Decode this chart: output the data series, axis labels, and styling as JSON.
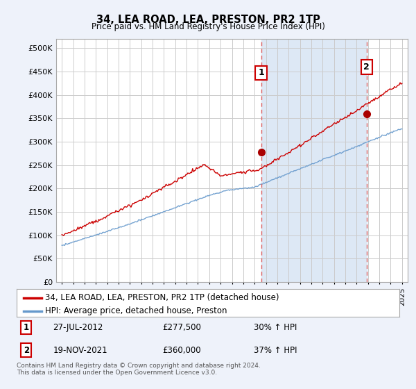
{
  "title": "34, LEA ROAD, LEA, PRESTON, PR2 1TP",
  "subtitle": "Price paid vs. HM Land Registry's House Price Index (HPI)",
  "ytick_values": [
    0,
    50000,
    100000,
    150000,
    200000,
    250000,
    300000,
    350000,
    400000,
    450000,
    500000
  ],
  "ylim": [
    0,
    520000
  ],
  "xlim_start": 1994.5,
  "xlim_end": 2025.5,
  "sale1_x": 2012.57,
  "sale1_y": 277500,
  "sale1_label": "1",
  "sale2_x": 2021.88,
  "sale2_y": 360000,
  "sale2_label": "2",
  "vline1_x": 2012.57,
  "vline2_x": 2021.88,
  "legend_line1": "34, LEA ROAD, LEA, PRESTON, PR2 1TP (detached house)",
  "legend_line2": "HPI: Average price, detached house, Preston",
  "annotation1": [
    "1",
    "27-JUL-2012",
    "£277,500",
    "30% ↑ HPI"
  ],
  "annotation2": [
    "2",
    "19-NOV-2021",
    "£360,000",
    "37% ↑ HPI"
  ],
  "footnote": "Contains HM Land Registry data © Crown copyright and database right 2024.\nThis data is licensed under the Open Government Licence v3.0.",
  "bg_color": "#eef2fa",
  "plot_bg_color": "#ffffff",
  "shade_color": "#dde8f5",
  "red_line_color": "#cc0000",
  "blue_line_color": "#6699cc",
  "grid_color": "#cccccc",
  "vline_color": "#dd6666"
}
